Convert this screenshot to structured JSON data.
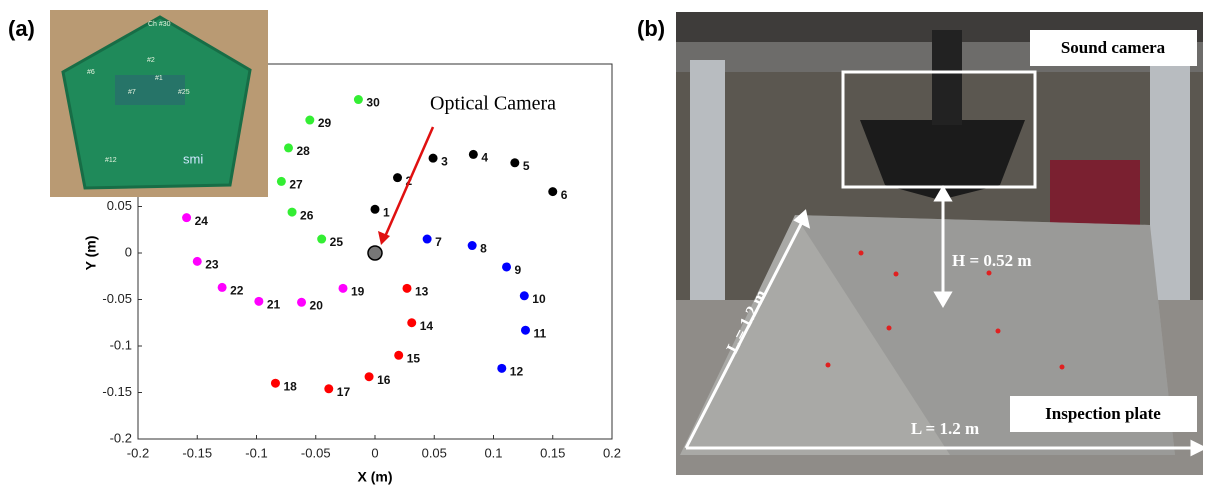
{
  "chart_data": {
    "type": "scatter",
    "panel_label": "(a)",
    "x_label": "X (m)",
    "y_label": "Y (m)",
    "xlim": [
      -0.2,
      0.2
    ],
    "ylim": [
      -0.2,
      0.2
    ],
    "xticks": [
      -0.2,
      -0.15,
      -0.1,
      -0.05,
      0,
      0.05,
      0.1,
      0.15,
      0.2
    ],
    "yticks": [
      -0.2,
      -0.15,
      -0.1,
      -0.05,
      0,
      0.05
    ],
    "series": [
      {
        "color": "#000000",
        "labels": [
          "1",
          "2",
          "3",
          "4",
          "5",
          "6"
        ],
        "x": [
          0,
          0.019,
          0.049,
          0.083,
          0.118,
          0.15
        ],
        "values": [
          0.047,
          0.081,
          0.102,
          0.106,
          0.097,
          0.066
        ]
      },
      {
        "color": "#0000ff",
        "labels": [
          "7",
          "8",
          "9",
          "10",
          "11",
          "12"
        ],
        "x": [
          0.044,
          0.082,
          0.111,
          0.126,
          0.127,
          0.107
        ],
        "values": [
          0.015,
          0.008,
          -0.015,
          -0.046,
          -0.083,
          -0.124
        ]
      },
      {
        "color": "#ff0000",
        "labels": [
          "13",
          "14",
          "15",
          "16",
          "17",
          "18"
        ],
        "x": [
          0.027,
          0.031,
          0.02,
          -0.005,
          -0.039,
          -0.084
        ],
        "values": [
          -0.038,
          -0.075,
          -0.11,
          -0.133,
          -0.146,
          -0.14
        ]
      },
      {
        "color": "#ff00ff",
        "labels": [
          "19",
          "20",
          "21",
          "22",
          "23",
          "24"
        ],
        "x": [
          -0.027,
          -0.062,
          -0.098,
          -0.129,
          -0.15,
          -0.159
        ],
        "values": [
          -0.038,
          -0.053,
          -0.052,
          -0.037,
          -0.009,
          0.038
        ]
      },
      {
        "color": "#33ee33",
        "labels": [
          "25",
          "26",
          "27",
          "28",
          "29",
          "30"
        ],
        "x": [
          -0.045,
          -0.07,
          -0.079,
          -0.073,
          -0.055,
          -0.014
        ],
        "values": [
          0.015,
          0.044,
          0.077,
          0.113,
          0.143,
          0.165
        ]
      }
    ],
    "annotation": {
      "text": "Optical Camera",
      "x": 0,
      "y": 0,
      "color": "#777777"
    },
    "inset_labels": [
      "Ch #30",
      "#6",
      "#2",
      "#1",
      "#7",
      "#25",
      "#12",
      "smi"
    ]
  },
  "photo": {
    "panel_label": "(b)",
    "sound_camera": "Sound camera",
    "height": "H = 0.52 m",
    "length_side": "L = 1.2 m",
    "length_front": "L = 1.2 m",
    "plate": "Inspection plate"
  }
}
